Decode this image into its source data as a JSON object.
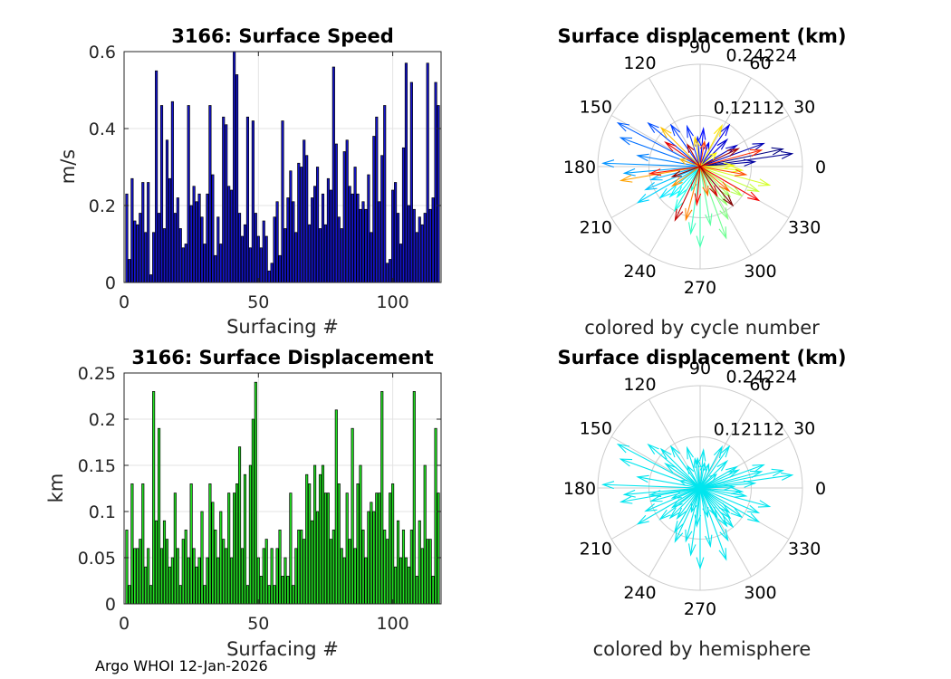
{
  "footer": "Argo WHOI 12-Jan-2026",
  "chart_data": [
    {
      "type": "bar",
      "title": "3166: Surface Speed",
      "xlabel": "Surfacing #",
      "ylabel": "m/s",
      "xlim": [
        0,
        118
      ],
      "ylim": [
        0,
        0.6
      ],
      "xticks": [
        0,
        50,
        100
      ],
      "yticks": [
        0,
        0.2,
        0.4,
        0.6
      ],
      "xtick_labels": [
        "0",
        "50",
        "100"
      ],
      "ytick_labels": [
        "0",
        "0.2",
        "0.4",
        "0.6"
      ],
      "bar_color": "#1414cc",
      "x": [
        1,
        2,
        3,
        4,
        5,
        6,
        7,
        8,
        9,
        10,
        11,
        12,
        13,
        14,
        15,
        16,
        17,
        18,
        19,
        20,
        21,
        22,
        23,
        24,
        25,
        26,
        27,
        28,
        29,
        30,
        31,
        32,
        33,
        34,
        35,
        36,
        37,
        38,
        39,
        40,
        41,
        42,
        43,
        44,
        45,
        46,
        47,
        48,
        49,
        50,
        51,
        52,
        53,
        54,
        55,
        56,
        57,
        58,
        59,
        60,
        61,
        62,
        63,
        64,
        65,
        66,
        67,
        68,
        69,
        70,
        71,
        72,
        73,
        74,
        75,
        76,
        77,
        78,
        79,
        80,
        81,
        82,
        83,
        84,
        85,
        86,
        87,
        88,
        89,
        90,
        91,
        92,
        93,
        94,
        95,
        96,
        97,
        98,
        99,
        100,
        101,
        102,
        103,
        104,
        105,
        106,
        107,
        108,
        109,
        110,
        111,
        112,
        113,
        114,
        115,
        116,
        117
      ],
      "values": [
        0.23,
        0.06,
        0.27,
        0.16,
        0.15,
        0.18,
        0.26,
        0.13,
        0.26,
        0.02,
        0.13,
        0.55,
        0.18,
        0.46,
        0.14,
        0.37,
        0.27,
        0.47,
        0.18,
        0.22,
        0.14,
        0.09,
        0.1,
        0.46,
        0.2,
        0.25,
        0.21,
        0.23,
        0.17,
        0.1,
        0.23,
        0.46,
        0.28,
        0.07,
        0.17,
        0.1,
        0.43,
        0.41,
        0.25,
        0.24,
        0.6,
        0.54,
        0.18,
        0.12,
        0.15,
        0.43,
        0.09,
        0.42,
        0.18,
        0.12,
        0.09,
        0.16,
        0.12,
        0.03,
        0.05,
        0.17,
        0.21,
        0.07,
        0.42,
        0.14,
        0.22,
        0.29,
        0.21,
        0.13,
        0.31,
        0.3,
        0.37,
        0.33,
        0.15,
        0.22,
        0.25,
        0.3,
        0.14,
        0.23,
        0.15,
        0.27,
        0.24,
        0.56,
        0.36,
        0.17,
        0.14,
        0.34,
        0.37,
        0.25,
        0.23,
        0.3,
        0.23,
        0.19,
        0.21,
        0.19,
        0.28,
        0.13,
        0.38,
        0.43,
        0.21,
        0.33,
        0.46,
        0.05,
        0.06,
        0.24,
        0.26,
        0.18,
        0.1,
        0.35,
        0.57,
        0.2,
        0.52,
        0.19,
        0.13,
        0.17,
        0.15,
        0.18,
        0.57,
        0.19,
        0.22,
        0.52,
        0.46
      ]
    },
    {
      "type": "bar",
      "title": "3166: Surface Displacement",
      "xlabel": "Surfacing #",
      "ylabel": "km",
      "xlim": [
        0,
        118
      ],
      "ylim": [
        0,
        0.25
      ],
      "xticks": [
        0,
        50,
        100
      ],
      "yticks": [
        0,
        0.05,
        0.1,
        0.15,
        0.2,
        0.25
      ],
      "xtick_labels": [
        "0",
        "50",
        "100"
      ],
      "ytick_labels": [
        "0",
        "0.05",
        "0.1",
        "0.15",
        "0.2",
        "0.25"
      ],
      "bar_color": "#22dd22",
      "x": [
        1,
        2,
        3,
        4,
        5,
        6,
        7,
        8,
        9,
        10,
        11,
        12,
        13,
        14,
        15,
        16,
        17,
        18,
        19,
        20,
        21,
        22,
        23,
        24,
        25,
        26,
        27,
        28,
        29,
        30,
        31,
        32,
        33,
        34,
        35,
        36,
        37,
        38,
        39,
        40,
        41,
        42,
        43,
        44,
        45,
        46,
        47,
        48,
        49,
        50,
        51,
        52,
        53,
        54,
        55,
        56,
        57,
        58,
        59,
        60,
        61,
        62,
        63,
        64,
        65,
        66,
        67,
        68,
        69,
        70,
        71,
        72,
        73,
        74,
        75,
        76,
        77,
        78,
        79,
        80,
        81,
        82,
        83,
        84,
        85,
        86,
        87,
        88,
        89,
        90,
        91,
        92,
        93,
        94,
        95,
        96,
        97,
        98,
        99,
        100,
        101,
        102,
        103,
        104,
        105,
        106,
        107,
        108,
        109,
        110,
        111,
        112,
        113,
        114,
        115,
        116,
        117
      ],
      "values": [
        0.08,
        0.02,
        0.13,
        0.06,
        0.06,
        0.07,
        0.13,
        0.04,
        0.06,
        0.02,
        0.23,
        0.09,
        0.19,
        0.06,
        0.09,
        0.07,
        0.04,
        0.05,
        0.12,
        0.06,
        0.02,
        0.07,
        0.08,
        0.05,
        0.13,
        0.06,
        0.04,
        0.05,
        0.1,
        0.02,
        0.05,
        0.13,
        0.11,
        0.08,
        0.05,
        0.1,
        0.07,
        0.06,
        0.12,
        0.05,
        0.12,
        0.13,
        0.17,
        0.06,
        0.14,
        0.02,
        0.15,
        0.2,
        0.24,
        0.05,
        0.03,
        0.06,
        0.07,
        0.02,
        0.06,
        0.02,
        0.06,
        0.08,
        0.03,
        0.05,
        0.03,
        0.12,
        0.02,
        0.06,
        0.08,
        0.08,
        0.07,
        0.14,
        0.13,
        0.09,
        0.15,
        0.1,
        0.14,
        0.15,
        0.12,
        0.12,
        0.07,
        0.08,
        0.21,
        0.13,
        0.06,
        0.05,
        0.12,
        0.07,
        0.19,
        0.06,
        0.13,
        0.15,
        0.08,
        0.05,
        0.1,
        0.11,
        0.1,
        0.12,
        0.12,
        0.23,
        0.08,
        0.07,
        0.12,
        0.13,
        0.04,
        0.09,
        0.05,
        0.08,
        0.05,
        0.04,
        0.08,
        0.23,
        0.03,
        0.09,
        0.06,
        0.15,
        0.07,
        0.07,
        0.03,
        0.19,
        0.12
      ]
    },
    {
      "type": "polar",
      "title": "Surface displacement (km)",
      "caption": "colored by cycle number",
      "rmax": 0.24224,
      "rtick_labels": [
        "0.12112",
        "0.24224"
      ],
      "angle_labels": [
        "0",
        "30",
        "60",
        "90",
        "120",
        "150",
        "180",
        "210",
        "240",
        "270",
        "300",
        "330"
      ],
      "coloring": "cycle",
      "arrows": [
        [
          0.2,
          12
        ],
        [
          0.22,
          8
        ],
        [
          0.13,
          5
        ],
        [
          0.16,
          20
        ],
        [
          0.1,
          30
        ],
        [
          0.09,
          45
        ],
        [
          0.12,
          55
        ],
        [
          0.06,
          70
        ],
        [
          0.09,
          85
        ],
        [
          0.07,
          95
        ],
        [
          0.1,
          108
        ],
        [
          0.12,
          125
        ],
        [
          0.16,
          140
        ],
        [
          0.22,
          152
        ],
        [
          0.2,
          160
        ],
        [
          0.15,
          170
        ],
        [
          0.23,
          178
        ],
        [
          0.18,
          185
        ],
        [
          0.12,
          195
        ],
        [
          0.14,
          203
        ],
        [
          0.17,
          210
        ],
        [
          0.12,
          218
        ],
        [
          0.1,
          225
        ],
        [
          0.09,
          233
        ],
        [
          0.12,
          240
        ],
        [
          0.06,
          250
        ],
        [
          0.16,
          262
        ],
        [
          0.19,
          270
        ],
        [
          0.14,
          280
        ],
        [
          0.18,
          290
        ],
        [
          0.14,
          298
        ],
        [
          0.11,
          305
        ],
        [
          0.1,
          315
        ],
        [
          0.12,
          325
        ],
        [
          0.15,
          337
        ],
        [
          0.17,
          345
        ],
        [
          0.1,
          355
        ],
        [
          0.08,
          2
        ],
        [
          0.05,
          40
        ],
        [
          0.11,
          62
        ],
        [
          0.07,
          100
        ],
        [
          0.13,
          135
        ],
        [
          0.05,
          160
        ],
        [
          0.19,
          190
        ],
        [
          0.08,
          215
        ],
        [
          0.13,
          255
        ],
        [
          0.07,
          285
        ],
        [
          0.09,
          320
        ],
        [
          0.11,
          350
        ],
        [
          0.06,
          80
        ],
        [
          0.15,
          15
        ],
        [
          0.12,
          188
        ],
        [
          0.09,
          265
        ],
        [
          0.16,
          330
        ],
        [
          0.1,
          145
        ],
        [
          0.08,
          300
        ],
        [
          0.14,
          245
        ],
        [
          0.06,
          120
        ],
        [
          0.1,
          25
        ],
        [
          0.07,
          200
        ],
        [
          0.12,
          310
        ]
      ]
    },
    {
      "type": "polar",
      "title": "Surface displacement (km)",
      "caption": "colored by hemisphere",
      "rmax": 0.24224,
      "rtick_labels": [
        "0.12112",
        "0.24224"
      ],
      "angle_labels": [
        "0",
        "30",
        "60",
        "90",
        "120",
        "150",
        "180",
        "210",
        "240",
        "270",
        "300",
        "330"
      ],
      "coloring": "hemisphere",
      "arrow_color": "#00e5ee",
      "arrows": [
        [
          0.2,
          12
        ],
        [
          0.22,
          8
        ],
        [
          0.13,
          5
        ],
        [
          0.16,
          20
        ],
        [
          0.1,
          30
        ],
        [
          0.09,
          45
        ],
        [
          0.12,
          55
        ],
        [
          0.06,
          70
        ],
        [
          0.09,
          85
        ],
        [
          0.07,
          95
        ],
        [
          0.1,
          108
        ],
        [
          0.12,
          125
        ],
        [
          0.16,
          140
        ],
        [
          0.22,
          152
        ],
        [
          0.2,
          160
        ],
        [
          0.15,
          170
        ],
        [
          0.23,
          178
        ],
        [
          0.18,
          185
        ],
        [
          0.12,
          195
        ],
        [
          0.14,
          203
        ],
        [
          0.17,
          210
        ],
        [
          0.12,
          218
        ],
        [
          0.1,
          225
        ],
        [
          0.09,
          233
        ],
        [
          0.12,
          240
        ],
        [
          0.06,
          250
        ],
        [
          0.16,
          262
        ],
        [
          0.19,
          270
        ],
        [
          0.14,
          280
        ],
        [
          0.18,
          290
        ],
        [
          0.14,
          298
        ],
        [
          0.11,
          305
        ],
        [
          0.1,
          315
        ],
        [
          0.12,
          325
        ],
        [
          0.15,
          337
        ],
        [
          0.17,
          345
        ],
        [
          0.1,
          355
        ],
        [
          0.08,
          2
        ],
        [
          0.05,
          40
        ],
        [
          0.11,
          62
        ],
        [
          0.07,
          100
        ],
        [
          0.13,
          135
        ],
        [
          0.05,
          160
        ],
        [
          0.19,
          190
        ],
        [
          0.08,
          215
        ],
        [
          0.13,
          255
        ],
        [
          0.07,
          285
        ],
        [
          0.09,
          320
        ],
        [
          0.11,
          350
        ],
        [
          0.06,
          80
        ],
        [
          0.15,
          15
        ],
        [
          0.12,
          188
        ],
        [
          0.09,
          265
        ],
        [
          0.16,
          330
        ],
        [
          0.1,
          145
        ],
        [
          0.08,
          300
        ],
        [
          0.14,
          245
        ],
        [
          0.06,
          120
        ],
        [
          0.1,
          25
        ],
        [
          0.07,
          200
        ],
        [
          0.12,
          310
        ]
      ]
    }
  ]
}
